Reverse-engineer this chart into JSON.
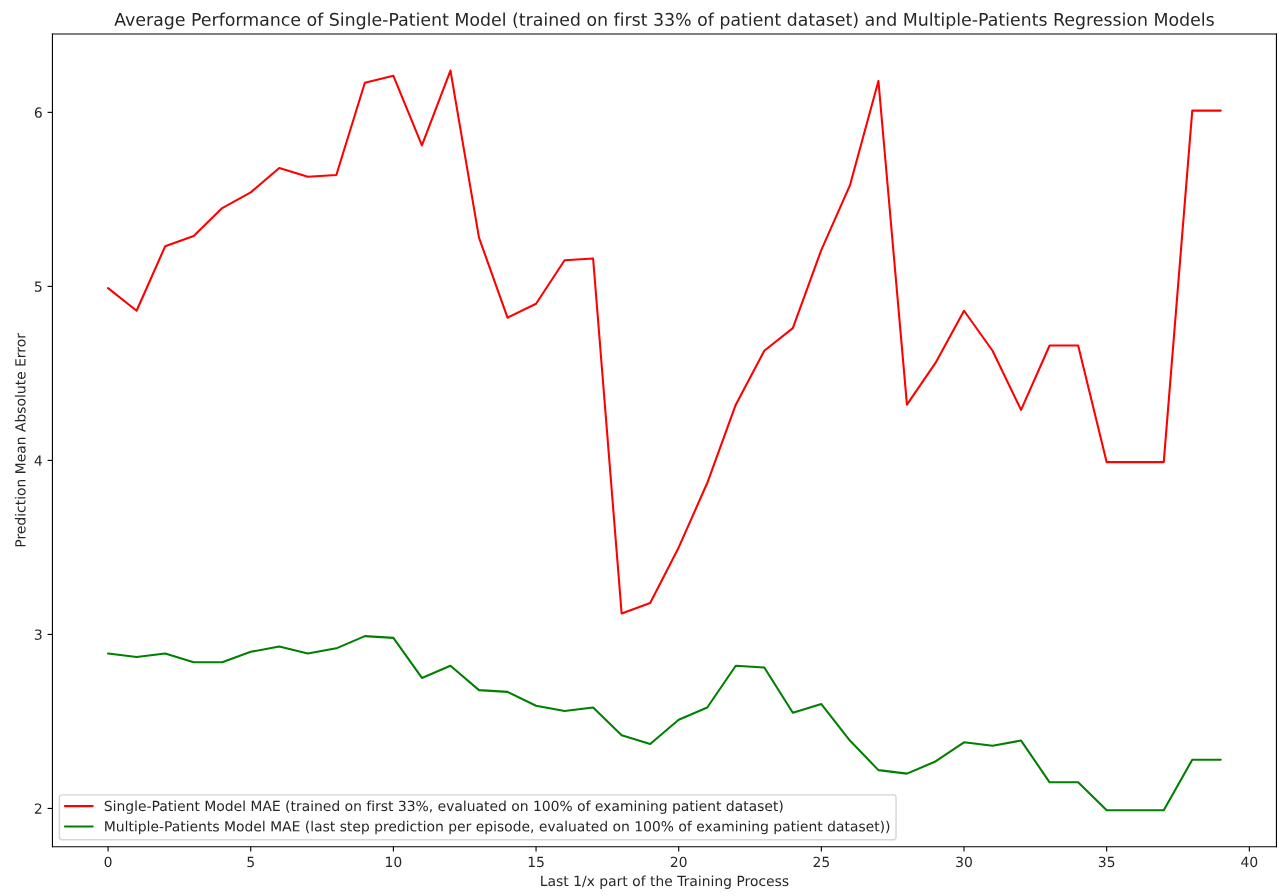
{
  "chart_data": {
    "type": "line",
    "title": "Average Performance of Single-Patient Model (trained on first 33% of patient dataset) and Multiple-Patients Regression Models",
    "xlabel": "Last 1/x part of the Training Process",
    "ylabel": "Prediction Mean Absolute Error",
    "x": [
      0,
      1,
      2,
      3,
      4,
      5,
      6,
      7,
      8,
      9,
      10,
      11,
      12,
      13,
      14,
      15,
      16,
      17,
      18,
      19,
      20,
      21,
      22,
      23,
      24,
      25,
      26,
      27,
      28,
      29,
      30,
      31,
      32,
      33,
      34,
      35,
      36,
      37,
      38,
      39
    ],
    "series": [
      {
        "name": "Single-Patient Model MAE (trained on first 33%, evaluated on 100% of examining patient dataset)",
        "color": "#ff0000",
        "values": [
          4.99,
          4.86,
          5.23,
          5.29,
          5.45,
          5.54,
          5.68,
          5.63,
          5.64,
          6.17,
          6.21,
          5.81,
          6.24,
          5.28,
          4.82,
          4.9,
          5.15,
          5.16,
          3.12,
          3.18,
          3.5,
          3.87,
          4.32,
          4.63,
          4.76,
          5.21,
          5.58,
          6.18,
          4.32,
          4.56,
          4.86,
          4.63,
          4.29,
          4.66,
          4.66,
          3.99,
          3.99,
          3.99,
          6.01,
          6.01
        ]
      },
      {
        "name": "Multiple-Patients Model MAE (last step prediction per episode, evaluated on 100% of examining patient dataset))",
        "color": "#008000",
        "values": [
          2.89,
          2.87,
          2.89,
          2.84,
          2.84,
          2.9,
          2.93,
          2.89,
          2.92,
          2.99,
          2.98,
          2.75,
          2.82,
          2.68,
          2.67,
          2.59,
          2.56,
          2.58,
          2.42,
          2.37,
          2.51,
          2.58,
          2.82,
          2.81,
          2.55,
          2.6,
          2.39,
          2.22,
          2.2,
          2.27,
          2.38,
          2.36,
          2.39,
          2.15,
          2.15,
          1.99,
          1.99,
          1.99,
          2.28,
          2.28
        ]
      }
    ],
    "xlim": [
      -1.95,
      40.95
    ],
    "ylim": [
      1.78,
      6.45
    ],
    "xticks": [
      0,
      5,
      10,
      15,
      20,
      25,
      30,
      35,
      40
    ],
    "yticks": [
      2,
      3,
      4,
      5,
      6
    ],
    "grid": false,
    "legend": "bottom left",
    "marker": "none",
    "line_style": "solid"
  }
}
